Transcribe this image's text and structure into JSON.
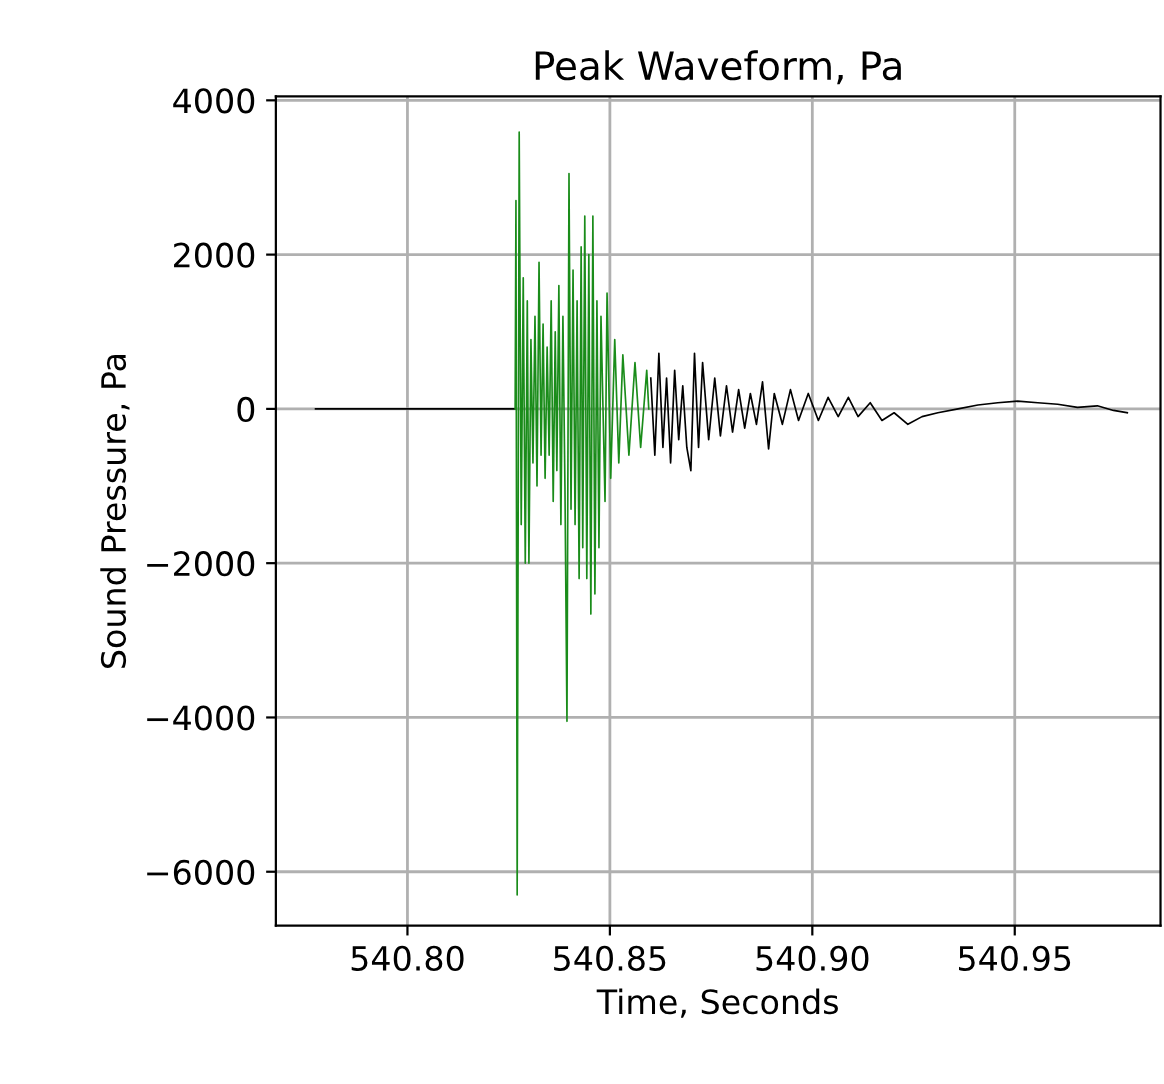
{
  "chart_data": {
    "type": "line",
    "title": "Peak Waveform, Pa",
    "xlabel": "Time, Seconds",
    "ylabel": "Sound Pressure, Pa",
    "xlim": [
      540.7675,
      540.986
    ],
    "xticks": [
      {
        "value": 540.8,
        "label": "540.80"
      },
      {
        "value": 540.85,
        "label": "540.85"
      },
      {
        "value": 540.9,
        "label": "540.90"
      },
      {
        "value": 540.95,
        "label": "540.95"
      }
    ],
    "ylim": [
      -6700,
      4050
    ],
    "yticks": [
      -6000,
      -4000,
      -2000,
      0,
      2000,
      4000
    ],
    "grid": true,
    "marker": "none",
    "line_style": "solid",
    "series": [
      {
        "color": "#000000",
        "x": [
          540.7773,
          540.8266,
          540.843,
          540.8601,
          540.8611,
          540.8621,
          540.8631,
          540.864,
          540.865,
          540.866,
          540.867,
          540.868,
          540.869,
          540.87,
          540.8709,
          540.8719,
          540.8729,
          540.8744,
          540.8759,
          540.8773,
          540.8788,
          540.8803,
          540.8818,
          540.8833,
          540.8847,
          540.8862,
          540.8877,
          540.8892,
          540.8906,
          540.8926,
          540.8946,
          540.8966,
          540.899,
          540.9015,
          540.9039,
          540.9064,
          540.9089,
          540.9113,
          540.9143,
          540.9172,
          540.9202,
          540.9236,
          540.9271,
          540.931,
          540.936,
          540.9409,
          540.9458,
          540.9507,
          540.9557,
          540.9606,
          540.9655,
          540.9704,
          540.9744,
          540.9778
        ],
        "values": [
          0,
          0,
          null,
          400,
          -600,
          720,
          -500,
          400,
          -700,
          500,
          -400,
          300,
          -500,
          -800,
          720,
          -500,
          600,
          -400,
          400,
          -350,
          300,
          -300,
          250,
          -250,
          200,
          -200,
          350,
          -520,
          200,
          -200,
          250,
          -150,
          200,
          -150,
          150,
          -100,
          150,
          -100,
          80,
          -150,
          -50,
          -200,
          -100,
          -50,
          0,
          50,
          80,
          100,
          80,
          60,
          20,
          40,
          -20,
          -50
        ]
      },
      {
        "color": "#1a8c1a",
        "x": [
          540.8266,
          540.8268,
          540.8271,
          540.8276,
          540.8281,
          540.8286,
          540.8291,
          540.8296,
          540.83,
          540.8305,
          540.831,
          540.8315,
          540.832,
          540.8325,
          540.833,
          540.8335,
          540.834,
          540.8345,
          540.835,
          540.8355,
          540.836,
          540.8365,
          540.8369,
          540.8374,
          540.8379,
          540.8384,
          540.8389,
          540.8394,
          540.8399,
          540.8404,
          540.8409,
          540.8414,
          540.8419,
          540.8424,
          540.8429,
          540.8433,
          540.8438,
          540.8443,
          540.8448,
          540.8453,
          540.8458,
          540.8463,
          540.8468,
          540.8473,
          540.8478,
          540.8488,
          540.8493,
          540.8502,
          540.8512,
          540.8522,
          540.8532,
          540.8547,
          540.8562,
          540.8576,
          540.8591,
          540.8596
        ],
        "values": [
          0,
          2700,
          -6300,
          3590,
          -1500,
          1700,
          -2000,
          1400,
          -2000,
          900,
          -700,
          1200,
          -1000,
          1900,
          -600,
          1100,
          -900,
          800,
          -600,
          1400,
          -1200,
          1000,
          -800,
          1600,
          -1500,
          1200,
          -1000,
          -4050,
          3050,
          -1300,
          1800,
          -1500,
          1400,
          -2200,
          2100,
          -1800,
          2500,
          -2200,
          2000,
          -2660,
          2500,
          -2400,
          1400,
          -1800,
          1200,
          -1200,
          1500,
          -900,
          900,
          -700,
          700,
          -600,
          600,
          -500,
          500,
          0
        ]
      }
    ]
  }
}
